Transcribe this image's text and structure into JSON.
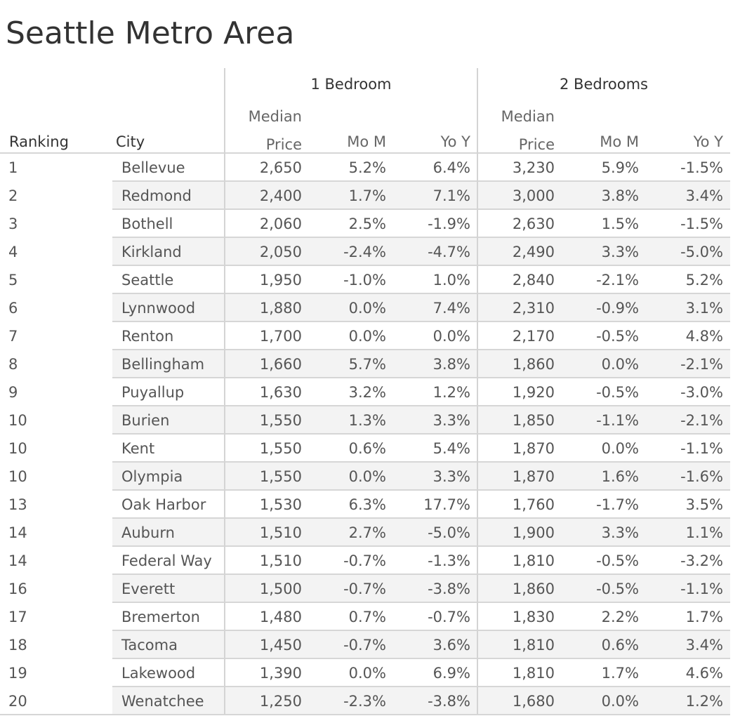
{
  "header": {
    "title": "Seattle Metro Area"
  },
  "table": {
    "group_headers": [
      "1 Bedroom",
      "2 Bedrooms"
    ],
    "columns": [
      "Ranking",
      "City",
      "Median Price",
      "Mo M",
      "Yo Y",
      "Median Price",
      "Mo M",
      "Yo Y"
    ],
    "rows": [
      [
        "1",
        "Bellevue",
        "2,650",
        "5.2%",
        "6.4%",
        "3,230",
        "5.9%",
        "-1.5%"
      ],
      [
        "2",
        "Redmond",
        "2,400",
        "1.7%",
        "7.1%",
        "3,000",
        "3.8%",
        "3.4%"
      ],
      [
        "3",
        "Bothell",
        "2,060",
        "2.5%",
        "-1.9%",
        "2,630",
        "1.5%",
        "-1.5%"
      ],
      [
        "4",
        "Kirkland",
        "2,050",
        "-2.4%",
        "-4.7%",
        "2,490",
        "3.3%",
        "-5.0%"
      ],
      [
        "5",
        "Seattle",
        "1,950",
        "-1.0%",
        "1.0%",
        "2,840",
        "-2.1%",
        "5.2%"
      ],
      [
        "6",
        "Lynnwood",
        "1,880",
        "0.0%",
        "7.4%",
        "2,310",
        "-0.9%",
        "3.1%"
      ],
      [
        "7",
        "Renton",
        "1,700",
        "0.0%",
        "0.0%",
        "2,170",
        "-0.5%",
        "4.8%"
      ],
      [
        "8",
        "Bellingham",
        "1,660",
        "5.7%",
        "3.8%",
        "1,860",
        "0.0%",
        "-2.1%"
      ],
      [
        "9",
        "Puyallup",
        "1,630",
        "3.2%",
        "1.2%",
        "1,920",
        "-0.5%",
        "-3.0%"
      ],
      [
        "10",
        "Burien",
        "1,550",
        "1.3%",
        "3.3%",
        "1,850",
        "-1.1%",
        "-2.1%"
      ],
      [
        "10",
        "Kent",
        "1,550",
        "0.6%",
        "5.4%",
        "1,870",
        "0.0%",
        "-1.1%"
      ],
      [
        "10",
        "Olympia",
        "1,550",
        "0.0%",
        "3.3%",
        "1,870",
        "1.6%",
        "-1.6%"
      ],
      [
        "13",
        "Oak Harbor",
        "1,530",
        "6.3%",
        "17.7%",
        "1,760",
        "-1.7%",
        "3.5%"
      ],
      [
        "14",
        "Auburn",
        "1,510",
        "2.7%",
        "-5.0%",
        "1,900",
        "3.3%",
        "1.1%"
      ],
      [
        "14",
        "Federal Way",
        "1,510",
        "-0.7%",
        "-1.3%",
        "1,810",
        "-0.5%",
        "-3.2%"
      ],
      [
        "16",
        "Everett",
        "1,500",
        "-0.7%",
        "-3.8%",
        "1,860",
        "-0.5%",
        "-1.1%"
      ],
      [
        "17",
        "Bremerton",
        "1,480",
        "0.7%",
        "-0.7%",
        "1,830",
        "2.2%",
        "1.7%"
      ],
      [
        "18",
        "Tacoma",
        "1,450",
        "-0.7%",
        "3.6%",
        "1,810",
        "0.6%",
        "3.4%"
      ],
      [
        "19",
        "Lakewood",
        "1,390",
        "0.0%",
        "6.9%",
        "1,810",
        "1.7%",
        "4.6%"
      ],
      [
        "20",
        "Wenatchee",
        "1,250",
        "-2.3%",
        "-3.8%",
        "1,680",
        "0.0%",
        "1.2%"
      ]
    ]
  }
}
